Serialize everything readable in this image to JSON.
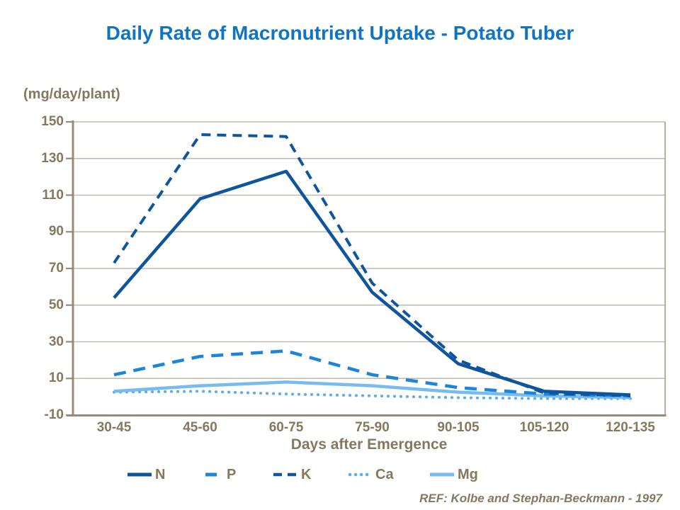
{
  "colors": {
    "title_blue": "#1173c6",
    "text_brown": "#85785e",
    "grid": "#c1b9aa",
    "axis": "#998b78",
    "frame": "#b0a592",
    "dark_blue": "#0e559e",
    "medium_blue": "#1c85da",
    "light_blue": "#78bbee",
    "dot_blue": "#61ade9"
  },
  "footer": {
    "ref": "REF: Kolbe and Stephan-Beckmann - 1997"
  },
  "chart_data": {
    "type": "line",
    "title": "Daily Rate of Macronutrient Uptake - Potato Tuber",
    "y_unit_label": "(mg/day/plant)",
    "xlabel": "Days after Emergence",
    "ylabel": "",
    "ylim": [
      -10,
      150
    ],
    "y_ticks": [
      150,
      130,
      110,
      90,
      70,
      50,
      30,
      10,
      -10
    ],
    "grid": "horizontal gridlines on",
    "legend_position": "bottom",
    "categories": [
      "30-45",
      "45-60",
      "60-75",
      "75-90",
      "90-105",
      "105-120",
      "120-135"
    ],
    "series": [
      {
        "name": "N",
        "style": "solid",
        "color_key": "dark_blue",
        "values": [
          54,
          108,
          123,
          57,
          18,
          3,
          1
        ]
      },
      {
        "name": "P",
        "style": "dashed-long",
        "color_key": "medium_blue",
        "values": [
          12,
          22,
          25,
          12,
          5,
          1.5,
          0.5
        ]
      },
      {
        "name": "K",
        "style": "dashed",
        "color_key": "dark_blue",
        "values": [
          73,
          143,
          142,
          62,
          20,
          2,
          0.5
        ]
      },
      {
        "name": "Ca",
        "style": "dotted",
        "color_key": "dot_blue",
        "values": [
          2.5,
          3,
          1.5,
          0.5,
          -0.5,
          -1,
          -1
        ]
      },
      {
        "name": "Mg",
        "style": "solid",
        "color_key": "light_blue",
        "values": [
          3,
          6,
          8,
          6,
          2.5,
          0.5,
          -0.5
        ]
      }
    ]
  }
}
